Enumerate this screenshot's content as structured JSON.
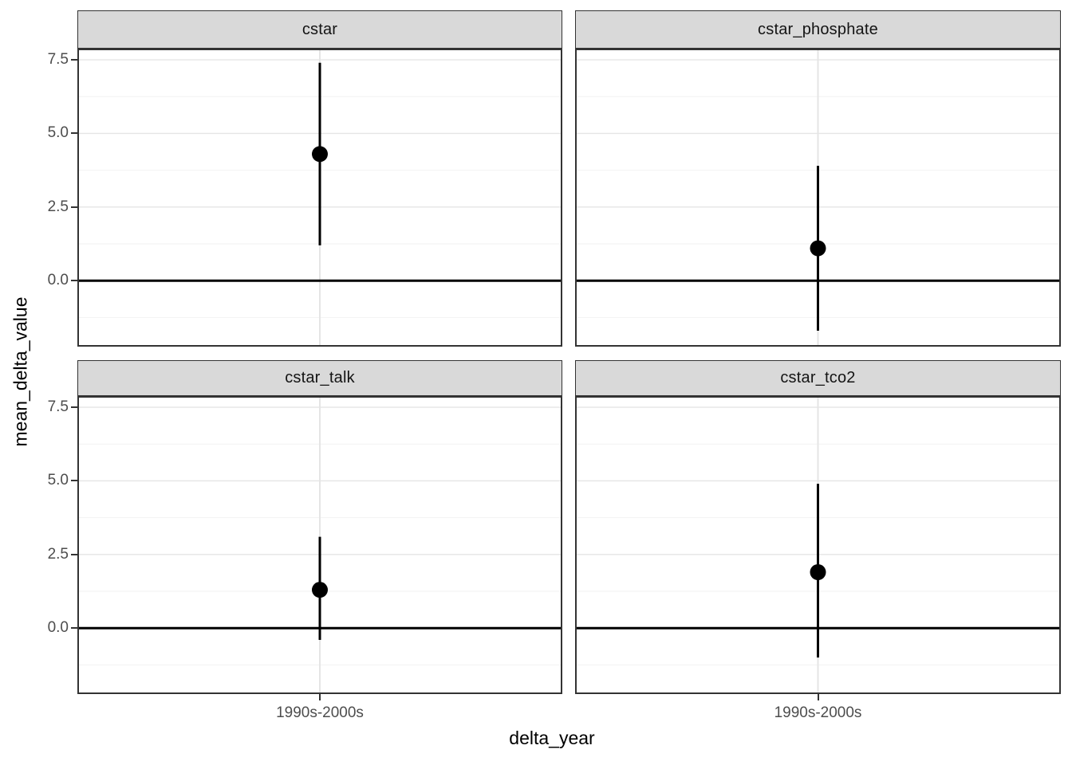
{
  "chart_data": {
    "type": "scatter",
    "subtype": "faceted_pointrange",
    "title": "",
    "xlabel": "delta_year",
    "ylabel": "mean_delta_value",
    "x_categories": [
      "1990s-2000s"
    ],
    "facet_titles": [
      "cstar",
      "cstar_phosphate",
      "cstar_talk",
      "cstar_tco2"
    ],
    "series": [
      {
        "name": "cstar",
        "x": "1990s-2000s",
        "mean": 4.3,
        "lower": 1.2,
        "upper": 7.4
      },
      {
        "name": "cstar_phosphate",
        "x": "1990s-2000s",
        "mean": 1.1,
        "lower": -1.7,
        "upper": 3.9
      },
      {
        "name": "cstar_talk",
        "x": "1990s-2000s",
        "mean": 1.3,
        "lower": -0.4,
        "upper": 3.1
      },
      {
        "name": "cstar_tco2",
        "x": "1990s-2000s",
        "mean": 1.9,
        "lower": -1.0,
        "upper": 4.9
      }
    ],
    "ylim": [
      -2.24,
      7.88
    ],
    "y_major_ticks": [
      7.5,
      5.0,
      2.5,
      0.0
    ],
    "y_tick_labels": [
      "7.5",
      "5.0",
      "2.5",
      "0.0"
    ],
    "y_minor_ticks": [
      6.25,
      3.75,
      1.25,
      -1.25
    ],
    "reference_hline_y": 0,
    "grid": "on",
    "legend": "none",
    "colors": {
      "point": "#000000",
      "errorbar": "#000000",
      "hline": "#000000",
      "strip_fill": "#d9d9d9",
      "strip_border": "#333333",
      "panel_border": "#333333",
      "panel_bg": "#ffffff",
      "grid_major": "#e5e5e5",
      "grid_minor": "#f2f2f2",
      "tick_label": "#4d4d4d",
      "axis_title": "#000000"
    }
  }
}
